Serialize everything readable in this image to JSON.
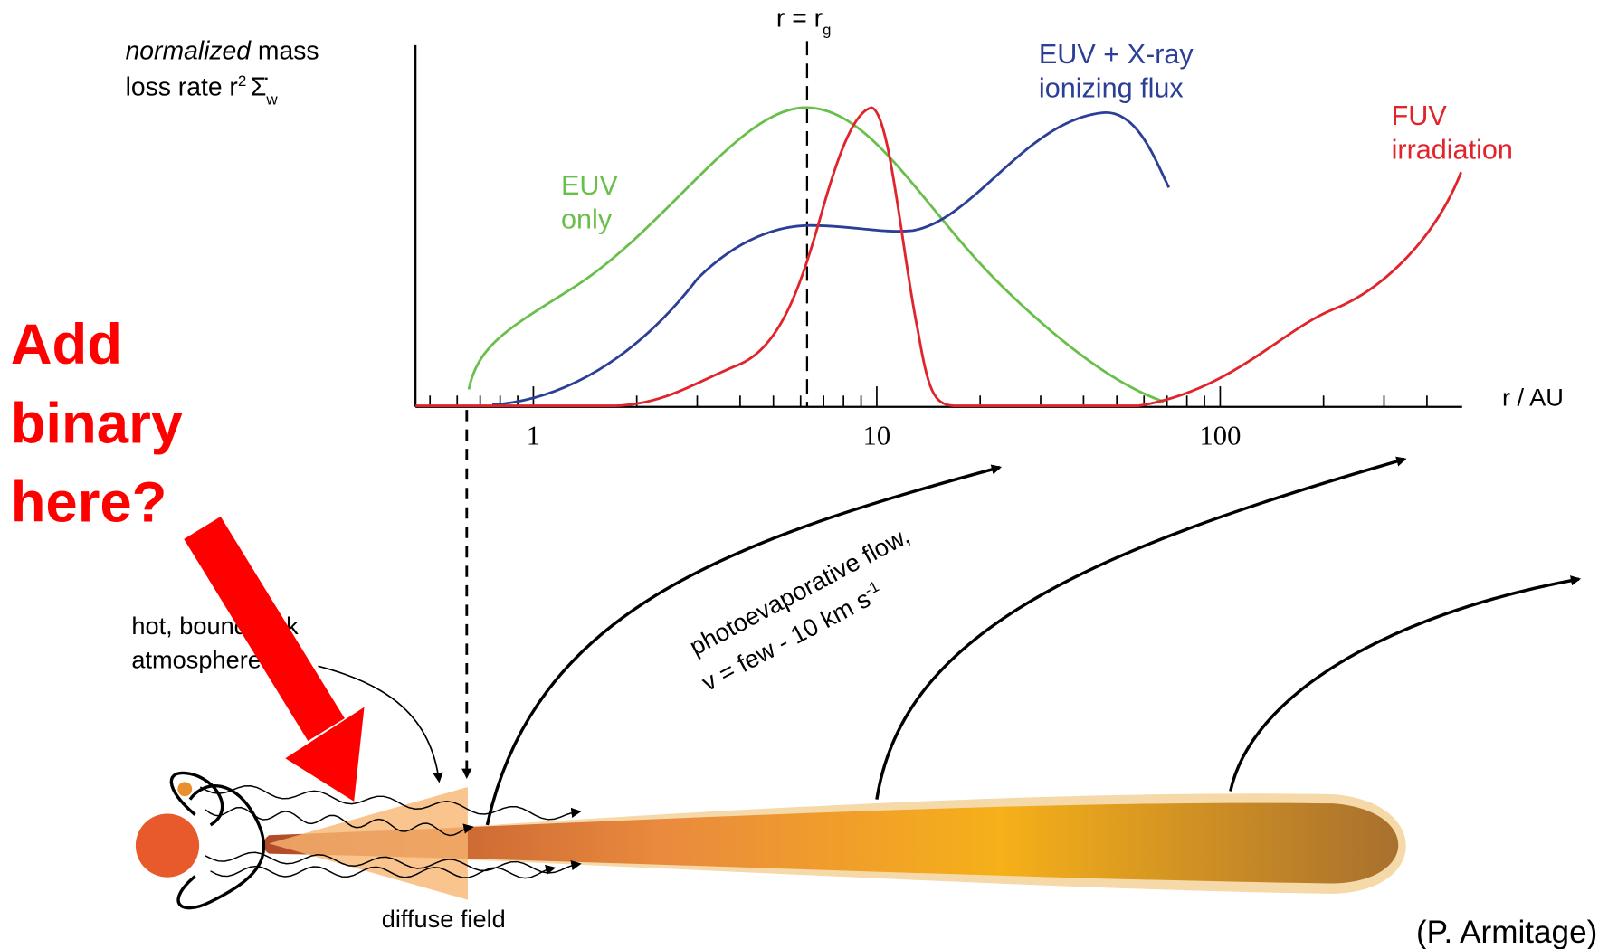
{
  "plot": {
    "y_label": {
      "italic": "normalized",
      "rest": "mass",
      "line2": "loss rate r",
      "sup": "2",
      "symbol": "Σ̇",
      "sub": "w"
    },
    "marker": {
      "text": "r = r",
      "sub": "g"
    },
    "curves": {
      "xray": [
        "EUV + X-ray",
        "ionizing flux"
      ],
      "fuv": [
        "FUV",
        "irradiation"
      ],
      "euv": [
        "EUV",
        "only"
      ]
    },
    "x_label": "r / AU",
    "x_ticks": [
      "1",
      "10",
      "100"
    ]
  },
  "callout": [
    "Add",
    "binary",
    "here?"
  ],
  "disk": {
    "flow": [
      "photoevaporative flow,",
      "v = few - 10 km s",
      "-1"
    ],
    "atmosphere": [
      "hot, bound disk",
      "atmosphere"
    ],
    "diffuse": "diffuse field"
  },
  "credit": "(P. Armitage)"
}
